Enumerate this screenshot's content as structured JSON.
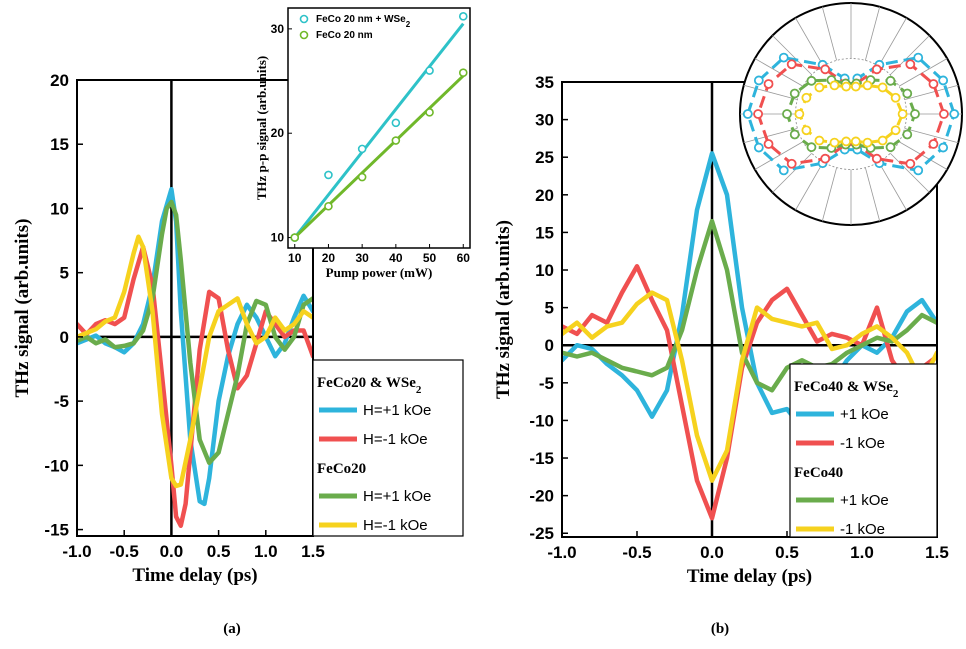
{
  "chart_data": [
    {
      "type": "line",
      "panel_label": "(a)",
      "xlabel": "Time delay (ps)",
      "ylabel": "THz signal (arb.units)",
      "xlim": [
        -1.0,
        1.5
      ],
      "ylim": [
        -15.5,
        20
      ],
      "xticks": [
        -1.0,
        -0.5,
        0.0,
        0.5,
        1.0,
        1.5
      ],
      "xtick_labels": [
        "-1.0",
        "-0.5",
        "0.0",
        "0.5",
        "1.0",
        "1.5"
      ],
      "yticks": [
        -15,
        -10,
        -5,
        0,
        5,
        10,
        15,
        20
      ],
      "ytick_labels": [
        "-15",
        "-10",
        "-5",
        "0",
        "5",
        "10",
        "15",
        "20"
      ],
      "grid": false,
      "zero_lines": true,
      "legend_placement": "bottom-right",
      "legend_groups": [
        {
          "heading": "FeCo20 & WSe",
          "heading_sub": "2",
          "entries": [
            "H=+1 kOe",
            "H=-1 kOe"
          ]
        },
        {
          "heading": "FeCo20",
          "heading_sub": "",
          "entries": [
            "H=+1 kOe",
            "H=-1 kOe"
          ]
        }
      ],
      "series": [
        {
          "color": "#2eb4dc",
          "x": [
            -1.0,
            -0.9,
            -0.8,
            -0.7,
            -0.6,
            -0.5,
            -0.4,
            -0.3,
            -0.2,
            -0.1,
            0.0,
            0.05,
            0.1,
            0.2,
            0.3,
            0.35,
            0.4,
            0.5,
            0.6,
            0.7,
            0.8,
            0.9,
            1.0,
            1.1,
            1.2,
            1.3,
            1.4,
            1.5
          ],
          "y": [
            -0.5,
            -0.2,
            0.1,
            -0.5,
            -0.8,
            -1.2,
            -0.5,
            1.0,
            4.0,
            9.0,
            11.5,
            9.0,
            2.0,
            -8.0,
            -12.8,
            -13.0,
            -11.0,
            -5.0,
            -1.5,
            1.0,
            2.5,
            1.5,
            0.0,
            -1.5,
            -0.5,
            1.5,
            3.2,
            2.0
          ]
        },
        {
          "color": "#f05050",
          "x": [
            -1.0,
            -0.9,
            -0.8,
            -0.7,
            -0.6,
            -0.5,
            -0.4,
            -0.3,
            -0.2,
            -0.1,
            0.0,
            0.05,
            0.1,
            0.15,
            0.2,
            0.3,
            0.4,
            0.5,
            0.6,
            0.7,
            0.8,
            0.9,
            1.0,
            1.1,
            1.2,
            1.3,
            1.4,
            1.5
          ],
          "y": [
            1.0,
            0.2,
            1.0,
            1.3,
            1.0,
            1.5,
            4.5,
            7.0,
            4.0,
            -3.0,
            -10.0,
            -14.0,
            -14.7,
            -13.0,
            -9.0,
            -1.0,
            3.5,
            3.0,
            -1.0,
            -4.0,
            -3.0,
            -0.5,
            2.0,
            1.0,
            0.0,
            0.5,
            0.5,
            -1.5
          ]
        },
        {
          "color": "#6aac4c",
          "x": [
            -1.0,
            -0.9,
            -0.8,
            -0.7,
            -0.6,
            -0.5,
            -0.4,
            -0.3,
            -0.2,
            -0.1,
            -0.05,
            0.0,
            0.05,
            0.1,
            0.2,
            0.3,
            0.4,
            0.5,
            0.6,
            0.7,
            0.8,
            0.9,
            1.0,
            1.1,
            1.2,
            1.3,
            1.4,
            1.5
          ],
          "y": [
            -0.3,
            0.0,
            -0.5,
            -0.2,
            -0.8,
            -0.7,
            -0.5,
            0.5,
            3.0,
            8.0,
            10.0,
            10.5,
            9.5,
            6.0,
            -2.0,
            -8.0,
            -9.8,
            -9.0,
            -6.0,
            -3.0,
            1.0,
            2.8,
            2.5,
            0.0,
            -1.0,
            0.0,
            2.5,
            3.0
          ]
        },
        {
          "color": "#f6d21e",
          "x": [
            -1.0,
            -0.9,
            -0.8,
            -0.7,
            -0.6,
            -0.5,
            -0.4,
            -0.35,
            -0.3,
            -0.2,
            -0.1,
            0.0,
            0.05,
            0.1,
            0.2,
            0.3,
            0.4,
            0.5,
            0.6,
            0.7,
            0.8,
            0.9,
            1.0,
            1.1,
            1.2,
            1.3,
            1.4,
            1.5
          ],
          "y": [
            0.0,
            0.3,
            0.6,
            1.2,
            1.5,
            3.5,
            6.5,
            7.8,
            7.0,
            2.0,
            -6.0,
            -11.0,
            -11.6,
            -11.5,
            -8.0,
            -4.0,
            0.0,
            2.0,
            2.5,
            3.0,
            1.0,
            -0.5,
            0.0,
            1.5,
            0.5,
            1.0,
            2.0,
            1.5
          ]
        }
      ],
      "inset": {
        "type": "scatter",
        "xlabel": "Pump power (mW)",
        "ylabel": "THz p-p signal (arb.units)",
        "xlim": [
          8,
          62
        ],
        "ylim": [
          9,
          32
        ],
        "xticks": [
          10,
          20,
          30,
          40,
          50,
          60
        ],
        "xtick_labels": [
          "10",
          "20",
          "30",
          "40",
          "50",
          "60"
        ],
        "yticks": [
          10,
          20,
          30
        ],
        "ytick_labels": [
          "10",
          "20",
          "30"
        ],
        "legend": [
          {
            "label": "FeCo 20 nm + WSe",
            "sub": "2",
            "color": "#2ec2c8"
          },
          {
            "label": "FeCo 20 nm",
            "sub": "",
            "color": "#70b82a"
          }
        ],
        "series": [
          {
            "color": "#2ec2c8",
            "x": [
              10,
              20,
              30,
              40,
              50,
              60
            ],
            "y": [
              10.0,
              16.0,
              18.5,
              21.0,
              26.0,
              31.2
            ],
            "fit": [
              [
                10,
                10.0
              ],
              [
                60,
                30.5
              ]
            ]
          },
          {
            "color": "#70b82a",
            "x": [
              10,
              20,
              30,
              40,
              50,
              60
            ],
            "y": [
              10.0,
              13.0,
              15.8,
              19.3,
              22.0,
              25.8
            ],
            "fit": [
              [
                10,
                10.0
              ],
              [
                60,
                25.5
              ]
            ]
          }
        ]
      }
    },
    {
      "type": "line",
      "panel_label": "(b)",
      "xlabel": "Time delay (ps)",
      "ylabel": "THz signal (arb.units)",
      "xlim": [
        -1.0,
        1.5
      ],
      "ylim": [
        -25.5,
        35
      ],
      "xticks": [
        -1.0,
        -0.5,
        0.0,
        0.5,
        1.0,
        1.5
      ],
      "xtick_labels": [
        "-1.0",
        "-0.5",
        "0.0",
        "0.5",
        "1.0",
        "1.5"
      ],
      "yticks": [
        -25,
        -20,
        -15,
        -10,
        -5,
        0,
        5,
        10,
        15,
        20,
        25,
        30,
        35
      ],
      "ytick_labels": [
        "-25",
        "-20",
        "-15",
        "-10",
        "-5",
        "0",
        "5",
        "10",
        "15",
        "20",
        "25",
        "30",
        "35"
      ],
      "grid": false,
      "zero_lines": true,
      "legend_placement": "bottom-right",
      "legend_groups": [
        {
          "heading": "FeCo40  & WSe",
          "heading_sub": "2",
          "entries": [
            "+1 kOe",
            "-1 kOe"
          ]
        },
        {
          "heading": "FeCo40",
          "heading_sub": "",
          "entries": [
            "+1 kOe",
            "-1 kOe"
          ]
        }
      ],
      "series": [
        {
          "color": "#2eb4dc",
          "x": [
            -1.0,
            -0.9,
            -0.8,
            -0.7,
            -0.6,
            -0.5,
            -0.4,
            -0.3,
            -0.2,
            -0.1,
            0.0,
            0.1,
            0.2,
            0.3,
            0.4,
            0.5,
            0.6,
            0.7,
            0.8,
            0.9,
            1.0,
            1.1,
            1.2,
            1.3,
            1.4,
            1.5
          ],
          "y": [
            -2.0,
            0.0,
            -0.5,
            -2.5,
            -4.0,
            -6.0,
            -9.5,
            -6.0,
            4.0,
            18.0,
            25.5,
            20.0,
            5.0,
            -5.0,
            -9.0,
            -8.5,
            -11.0,
            -10.0,
            -5.0,
            -2.0,
            0.0,
            -1.0,
            1.0,
            4.5,
            6.0,
            3.0
          ]
        },
        {
          "color": "#f05050",
          "x": [
            -1.0,
            -0.9,
            -0.8,
            -0.7,
            -0.6,
            -0.5,
            -0.4,
            -0.3,
            -0.2,
            -0.1,
            0.0,
            0.1,
            0.2,
            0.3,
            0.4,
            0.5,
            0.6,
            0.7,
            0.8,
            0.9,
            1.0,
            1.1,
            1.2,
            1.3,
            1.4,
            1.5
          ],
          "y": [
            2.5,
            1.5,
            4.0,
            3.0,
            7.0,
            10.5,
            6.0,
            2.0,
            -8.0,
            -18.0,
            -23.0,
            -15.0,
            -3.0,
            3.0,
            6.0,
            7.5,
            4.0,
            0.5,
            1.5,
            1.0,
            0.0,
            5.0,
            -2.0,
            -5.0,
            -3.0,
            -1.5
          ]
        },
        {
          "color": "#6aac4c",
          "x": [
            -1.0,
            -0.9,
            -0.8,
            -0.7,
            -0.6,
            -0.5,
            -0.4,
            -0.3,
            -0.2,
            -0.1,
            0.0,
            0.1,
            0.2,
            0.3,
            0.4,
            0.5,
            0.6,
            0.7,
            0.8,
            0.9,
            1.0,
            1.1,
            1.2,
            1.3,
            1.4,
            1.5
          ],
          "y": [
            -1.0,
            -1.5,
            -1.0,
            -2.0,
            -3.0,
            -3.5,
            -4.0,
            -3.0,
            2.0,
            10.0,
            16.5,
            10.0,
            -1.0,
            -5.0,
            -6.0,
            -3.0,
            -2.0,
            -3.0,
            -2.5,
            -1.0,
            0.0,
            1.0,
            0.5,
            2.0,
            4.0,
            3.0
          ]
        },
        {
          "color": "#f6d21e",
          "x": [
            -1.0,
            -0.9,
            -0.8,
            -0.7,
            -0.6,
            -0.5,
            -0.4,
            -0.3,
            -0.2,
            -0.1,
            0.0,
            0.1,
            0.2,
            0.3,
            0.4,
            0.5,
            0.6,
            0.7,
            0.8,
            0.9,
            1.0,
            1.1,
            1.2,
            1.3,
            1.4,
            1.5
          ],
          "y": [
            1.5,
            3.0,
            1.0,
            2.5,
            3.0,
            5.5,
            7.0,
            6.0,
            -2.0,
            -12.0,
            -18.0,
            -14.0,
            -2.0,
            5.0,
            3.5,
            3.0,
            2.5,
            3.0,
            -0.5,
            0.0,
            1.5,
            2.5,
            1.0,
            -1.0,
            -5.0,
            -1.0
          ]
        }
      ],
      "inset": {
        "type": "polar",
        "series": [
          {
            "color": "#2eb4dc",
            "theta_deg": [
              0,
              20,
              40,
              60,
              80,
              100,
              120,
              140,
              160,
              180,
              200,
              220,
              240,
              260,
              280,
              300,
              320,
              340
            ],
            "r": [
              1.0,
              0.95,
              0.85,
              0.55,
              0.35,
              0.35,
              0.55,
              0.85,
              0.95,
              1.0,
              0.95,
              0.85,
              0.55,
              0.35,
              0.35,
              0.55,
              0.85,
              0.95
            ]
          },
          {
            "color": "#f05050",
            "theta_deg": [
              0,
              20,
              40,
              60,
              80,
              100,
              120,
              140,
              160,
              180,
              200,
              220,
              240,
              260,
              280,
              300,
              320,
              340
            ],
            "r": [
              0.9,
              0.85,
              0.75,
              0.5,
              0.3,
              0.3,
              0.5,
              0.75,
              0.85,
              0.9,
              0.85,
              0.75,
              0.5,
              0.3,
              0.3,
              0.5,
              0.75,
              0.85
            ]
          },
          {
            "color": "#6aac4c",
            "theta_deg": [
              0,
              20,
              40,
              60,
              80,
              100,
              120,
              140,
              160,
              180,
              200,
              220,
              240,
              260,
              280,
              300,
              320,
              340
            ],
            "r": [
              0.62,
              0.58,
              0.5,
              0.38,
              0.3,
              0.3,
              0.38,
              0.5,
              0.58,
              0.62,
              0.58,
              0.5,
              0.38,
              0.3,
              0.3,
              0.38,
              0.5,
              0.58
            ]
          },
          {
            "color": "#f6d21e",
            "theta_deg": [
              0,
              20,
              40,
              60,
              80,
              100,
              120,
              140,
              160,
              180,
              200,
              220,
              240,
              260,
              280,
              300,
              320,
              340
            ],
            "r": [
              0.5,
              0.46,
              0.4,
              0.32,
              0.27,
              0.27,
              0.32,
              0.4,
              0.46,
              0.5,
              0.46,
              0.4,
              0.32,
              0.27,
              0.27,
              0.32,
              0.4,
              0.46
            ]
          }
        ]
      }
    }
  ]
}
